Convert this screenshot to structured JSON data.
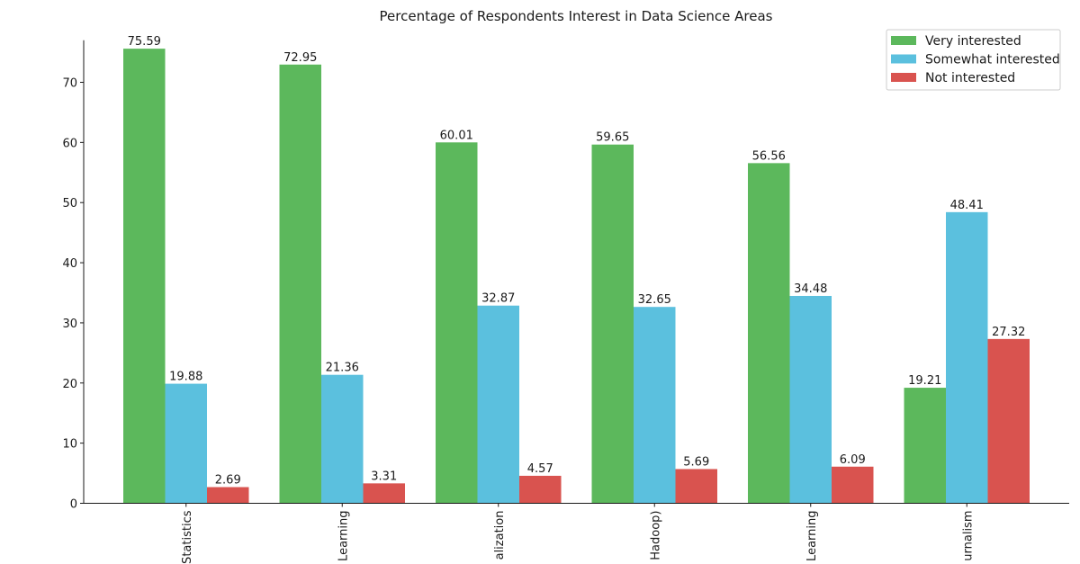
{
  "chart_data": {
    "type": "bar",
    "title": "Percentage of Respondents Interest in Data Science Areas",
    "xlabel": "",
    "ylabel": "",
    "ylim": [
      0,
      77
    ],
    "yticks": [
      0,
      10,
      20,
      30,
      40,
      50,
      60,
      70
    ],
    "categories": [
      "Statistics",
      "Learning",
      "alization",
      "Hadoop)",
      "Learning",
      "urnalism"
    ],
    "series": [
      {
        "name": "Very interested",
        "color": "#5cb85c",
        "values": [
          75.59,
          72.95,
          60.01,
          59.65,
          56.56,
          19.21
        ]
      },
      {
        "name": "Somewhat interested",
        "color": "#5bc0de",
        "values": [
          19.88,
          21.36,
          32.87,
          32.65,
          34.48,
          48.41
        ]
      },
      {
        "name": "Not interested",
        "color": "#d9534f",
        "values": [
          2.69,
          3.31,
          4.57,
          5.69,
          6.09,
          27.32
        ]
      }
    ],
    "legend": "top-right",
    "grid": false
  }
}
